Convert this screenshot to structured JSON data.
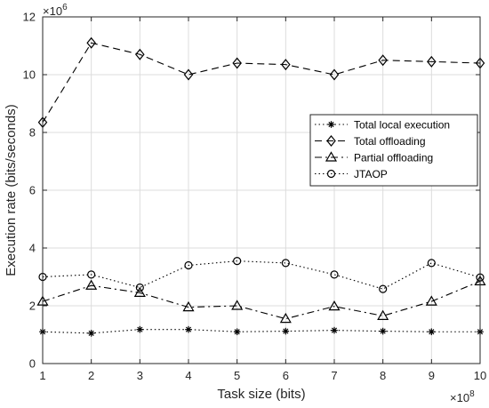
{
  "chart_data": {
    "type": "line",
    "xlabel": "Task size (bits)",
    "ylabel": "Execution rate (bits/seconds)",
    "x_multiplier": {
      "base": "×10",
      "exponent": "8"
    },
    "y_multiplier": {
      "base": "×10",
      "exponent": "6"
    },
    "x": [
      1,
      2,
      3,
      4,
      5,
      6,
      7,
      8,
      9,
      10
    ],
    "xlim": [
      1,
      10
    ],
    "ylim": [
      0,
      12
    ],
    "x_ticks": [
      "1",
      "2",
      "3",
      "4",
      "5",
      "6",
      "7",
      "8",
      "9",
      "10"
    ],
    "y_ticks": [
      "0",
      "2",
      "4",
      "6",
      "8",
      "10",
      "12"
    ],
    "grid": true,
    "legend_position": "right",
    "series": [
      {
        "name": "Total local execution",
        "values": [
          1.1,
          1.05,
          1.18,
          1.18,
          1.1,
          1.12,
          1.15,
          1.12,
          1.1,
          1.1
        ],
        "marker": "asterisk",
        "dash": "dotted"
      },
      {
        "name": "Total offloading",
        "values": [
          8.35,
          11.1,
          10.7,
          10.0,
          10.4,
          10.35,
          10.0,
          10.5,
          10.45,
          10.4
        ],
        "marker": "diamond",
        "dash": "dashed"
      },
      {
        "name": "Partial offloading",
        "values": [
          2.15,
          2.7,
          2.45,
          1.95,
          2.0,
          1.55,
          1.98,
          1.65,
          2.15,
          2.85
        ],
        "marker": "triangle",
        "dash": "dashdot"
      },
      {
        "name": "JTAOP",
        "values": [
          3.0,
          3.08,
          2.63,
          3.4,
          3.55,
          3.48,
          3.08,
          2.58,
          3.48,
          2.98
        ],
        "marker": "circle",
        "dash": "dotted"
      }
    ]
  }
}
